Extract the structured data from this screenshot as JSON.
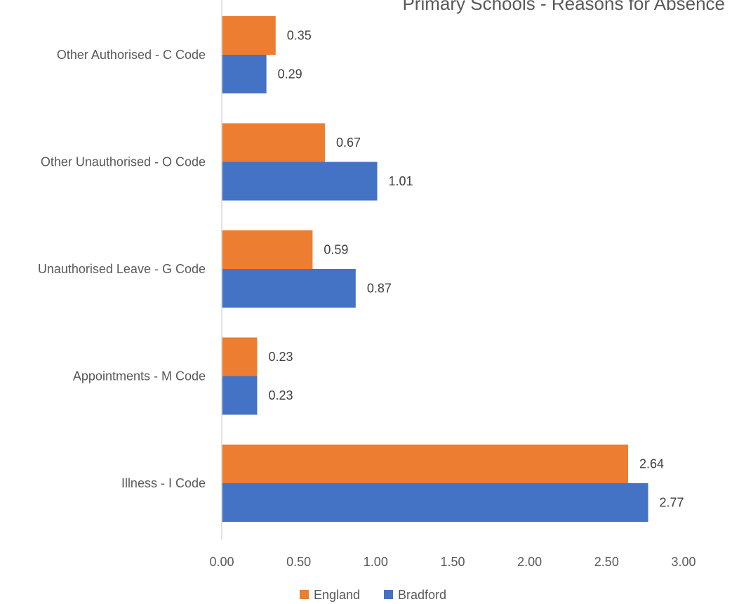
{
  "chart_data": {
    "type": "bar",
    "orientation": "horizontal",
    "title": "Primary Schools - Reasons for Absence",
    "categories": [
      "Other Authorised - C Code",
      "Other Unauthorised - O Code",
      "Unauthorised Leave - G Code",
      "Appointments - M Code",
      "Illness - I Code"
    ],
    "series": [
      {
        "name": "England",
        "values": [
          0.35,
          0.67,
          0.59,
          0.23,
          2.64
        ],
        "color": "#ED7D31"
      },
      {
        "name": "Bradford",
        "values": [
          0.29,
          1.01,
          0.87,
          0.23,
          2.77
        ],
        "color": "#4472C4"
      }
    ],
    "xlim": [
      0,
      3
    ],
    "x_ticks": [
      "0.00",
      "0.50",
      "1.00",
      "1.50",
      "2.00",
      "2.50",
      "3.00"
    ],
    "data_labels": [
      [
        "0.35",
        "0.67",
        "0.59",
        "0.23",
        "2.64"
      ],
      [
        "0.29",
        "1.01",
        "0.87",
        "0.23",
        "2.77"
      ]
    ],
    "legend_position": "bottom",
    "grid": false
  }
}
